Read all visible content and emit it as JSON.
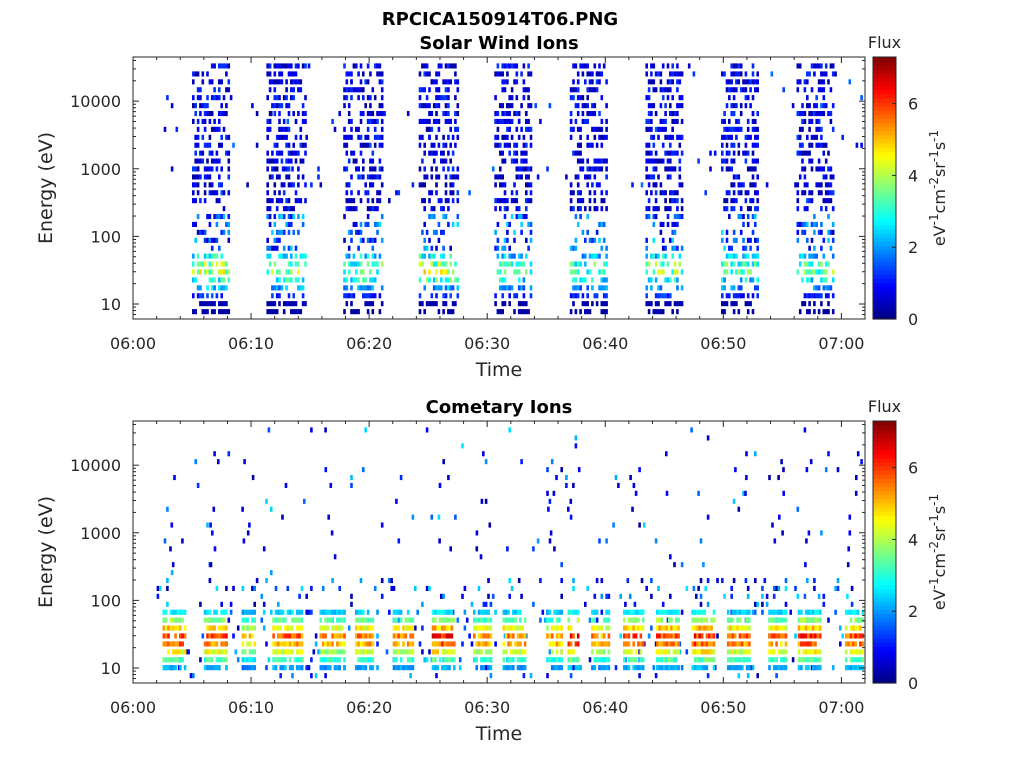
{
  "figure_title": "RPCICA150914T06.PNG",
  "colormap_stops": [
    "#00007f",
    "#0000ff",
    "#007fff",
    "#00ffff",
    "#7fff7f",
    "#ffff00",
    "#ff7f00",
    "#ff0000",
    "#7f0000"
  ],
  "chart_data": [
    {
      "type": "heatmap",
      "title": "Solar Wind Ions",
      "xlabel": "Time",
      "ylabel": "Energy (eV)",
      "yscale": "log",
      "xlim": [
        "06:00",
        "07:02"
      ],
      "ylim": [
        6,
        45000
      ],
      "xticks": [
        "06:00",
        "06:10",
        "06:20",
        "06:30",
        "06:40",
        "06:50",
        "07:00"
      ],
      "yticks": [
        10,
        100,
        1000,
        10000
      ],
      "ytick_labels": [
        "10",
        "100",
        "1000",
        "10000"
      ],
      "colorbar": {
        "title": "Flux",
        "label_base": "eV",
        "label_parts": [
          "-1",
          "cm",
          "-2",
          "sr",
          "-1",
          "s",
          "-1"
        ],
        "range": [
          0,
          7.3
        ],
        "ticks": [
          0,
          2,
          4,
          6
        ],
        "tick_labels": [
          "0",
          "2",
          "4",
          "6"
        ]
      },
      "data_coverage_minutes": [
        2,
        62
      ],
      "bursts": [
        {
          "start_minute": 5.0,
          "end_minute": 8.2,
          "flux_at_30eV": 5.0
        },
        {
          "start_minute": 11.3,
          "end_minute": 14.5,
          "flux_at_30eV": 4.6
        },
        {
          "start_minute": 17.8,
          "end_minute": 21.0,
          "flux_at_30eV": 4.4
        },
        {
          "start_minute": 24.2,
          "end_minute": 27.5,
          "flux_at_30eV": 5.0
        },
        {
          "start_minute": 30.6,
          "end_minute": 33.8,
          "flux_at_30eV": 4.2
        },
        {
          "start_minute": 37.0,
          "end_minute": 40.2,
          "flux_at_30eV": 4.2
        },
        {
          "start_minute": 43.4,
          "end_minute": 46.6,
          "flux_at_30eV": 4.6
        },
        {
          "start_minute": 49.8,
          "end_minute": 53.0,
          "flux_at_30eV": 4.2
        },
        {
          "start_minute": 56.2,
          "end_minute": 59.3,
          "flux_at_30eV": 4.2
        }
      ]
    },
    {
      "type": "heatmap",
      "title": "Cometary Ions",
      "xlabel": "Time",
      "ylabel": "Energy (eV)",
      "yscale": "log",
      "xlim": [
        "06:00",
        "07:02"
      ],
      "ylim": [
        6,
        45000
      ],
      "xticks": [
        "06:00",
        "06:10",
        "06:20",
        "06:30",
        "06:40",
        "06:50",
        "07:00"
      ],
      "yticks": [
        10,
        100,
        1000,
        10000
      ],
      "ytick_labels": [
        "10",
        "100",
        "1000",
        "10000"
      ],
      "colorbar": {
        "title": "Flux",
        "label_base": "eV",
        "label_parts": [
          "-1",
          "cm",
          "-2",
          "sr",
          "-1",
          "s",
          "-1"
        ],
        "range": [
          0,
          7.3
        ],
        "ticks": [
          0,
          2,
          4,
          6
        ],
        "tick_labels": [
          "0",
          "2",
          "4",
          "6"
        ]
      },
      "data_coverage_minutes": [
        2,
        62
      ],
      "peak_energy_eV": 25,
      "blobs": [
        {
          "start_minute": 2.5,
          "end_minute": 4.5,
          "peak_flux": 6.8
        },
        {
          "start_minute": 6.0,
          "end_minute": 8.0,
          "peak_flux": 6.7
        },
        {
          "start_minute": 9.2,
          "end_minute": 10.2,
          "peak_flux": 5.5
        },
        {
          "start_minute": 11.8,
          "end_minute": 14.3,
          "peak_flux": 6.4
        },
        {
          "start_minute": 15.8,
          "end_minute": 17.8,
          "peak_flux": 6.0
        },
        {
          "start_minute": 18.8,
          "end_minute": 20.3,
          "peak_flux": 6.2
        },
        {
          "start_minute": 22.0,
          "end_minute": 23.7,
          "peak_flux": 6.3
        },
        {
          "start_minute": 25.3,
          "end_minute": 27.2,
          "peak_flux": 6.9
        },
        {
          "start_minute": 28.8,
          "end_minute": 30.3,
          "peak_flux": 6.0
        },
        {
          "start_minute": 31.3,
          "end_minute": 33.3,
          "peak_flux": 6.2
        },
        {
          "start_minute": 35.0,
          "end_minute": 36.3,
          "peak_flux": 6.0
        },
        {
          "start_minute": 36.8,
          "end_minute": 37.8,
          "peak_flux": 7.2
        },
        {
          "start_minute": 38.8,
          "end_minute": 40.3,
          "peak_flux": 6.0
        },
        {
          "start_minute": 41.5,
          "end_minute": 43.3,
          "peak_flux": 6.7
        },
        {
          "start_minute": 44.3,
          "end_minute": 46.3,
          "peak_flux": 6.8
        },
        {
          "start_minute": 47.3,
          "end_minute": 49.3,
          "peak_flux": 7.0
        },
        {
          "start_minute": 50.3,
          "end_minute": 52.3,
          "peak_flux": 6.5
        },
        {
          "start_minute": 53.8,
          "end_minute": 55.3,
          "peak_flux": 6.3
        },
        {
          "start_minute": 56.3,
          "end_minute": 58.3,
          "peak_flux": 6.8
        },
        {
          "start_minute": 60.3,
          "end_minute": 61.8,
          "peak_flux": 6.6
        }
      ]
    }
  ]
}
